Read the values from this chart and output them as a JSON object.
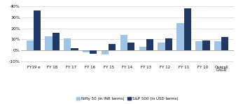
{
  "categories": [
    "FY19 e",
    "FY 18",
    "FY 17",
    "FY 16",
    "FY 15",
    "FY 14",
    "FY 13",
    "FY 12",
    "FY 11",
    "FY 10",
    "Overall\nCAGR"
  ],
  "nifty50": [
    9,
    13,
    11,
    -2,
    -4,
    14,
    3,
    7,
    25,
    8,
    8
  ],
  "sp500": [
    36,
    16,
    2,
    -3,
    6,
    7,
    10,
    11,
    38,
    9,
    12
  ],
  "nifty_color": "#9dc3e6",
  "sp500_color": "#203864",
  "ylim": [
    -13,
    43
  ],
  "yticks": [
    -10,
    0,
    10,
    20,
    30,
    40
  ],
  "bar_width": 0.38,
  "legend_nifty": "Nifty 50 (in INR terms)",
  "legend_sp500": "S&P 500 (in USD terms)",
  "bg_color": "#ffffff",
  "grid_color": "#d0d0d0"
}
